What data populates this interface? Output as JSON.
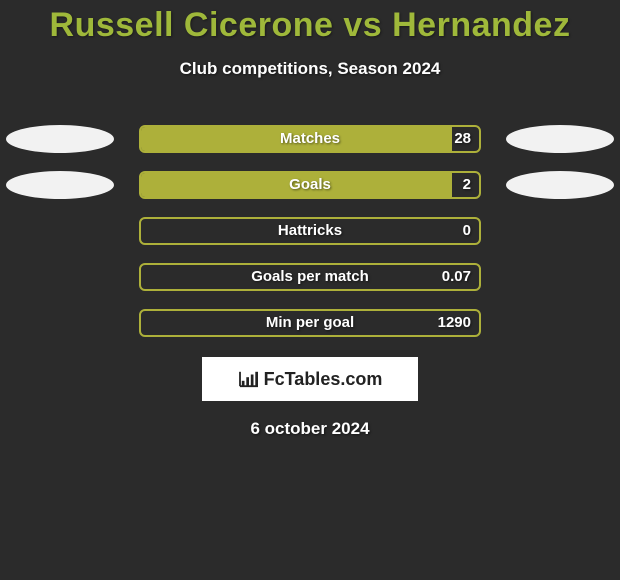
{
  "title": "Russell Cicerone vs Hernandez",
  "subtitle": "Club competitions, Season 2024",
  "date_text": "6 october 2024",
  "logo_text": "FcTables.com",
  "colors": {
    "background": "#2b2b2b",
    "accent": "#adb03a",
    "title_color": "#9fb83a",
    "oval_fill": "#f2f2f2",
    "text_white": "#ffffff",
    "logo_bg": "#ffffff",
    "logo_text": "#222222"
  },
  "stats": [
    {
      "label": "Matches",
      "left_value": "",
      "right_value": "28",
      "fill_from": "left",
      "fill_pct": 92,
      "show_left_oval": true,
      "show_right_oval": true
    },
    {
      "label": "Goals",
      "left_value": "",
      "right_value": "2",
      "fill_from": "left",
      "fill_pct": 92,
      "show_left_oval": true,
      "show_right_oval": true
    },
    {
      "label": "Hattricks",
      "left_value": "",
      "right_value": "0",
      "fill_from": "left",
      "fill_pct": 0,
      "show_left_oval": false,
      "show_right_oval": false
    },
    {
      "label": "Goals per match",
      "left_value": "",
      "right_value": "0.07",
      "fill_from": "left",
      "fill_pct": 0,
      "show_left_oval": false,
      "show_right_oval": false
    },
    {
      "label": "Min per goal",
      "left_value": "",
      "right_value": "1290",
      "fill_from": "left",
      "fill_pct": 0,
      "show_left_oval": false,
      "show_right_oval": false
    }
  ]
}
